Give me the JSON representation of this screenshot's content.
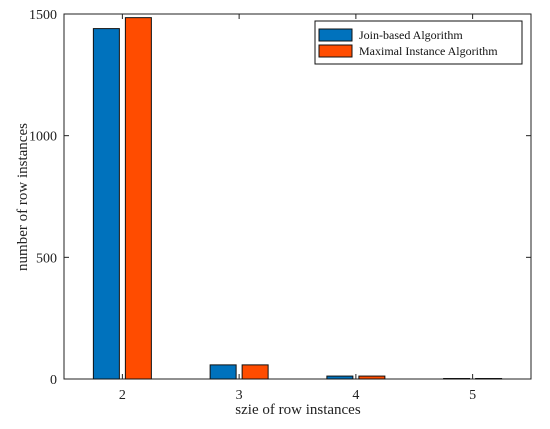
{
  "chart_data": {
    "type": "bar",
    "categories": [
      "2",
      "3",
      "4",
      "5"
    ],
    "series": [
      {
        "name": "Join-based Algorithm",
        "values": [
          1440,
          58,
          12,
          2
        ],
        "color": "#0072BD"
      },
      {
        "name": "Maximal Instance Algorithm",
        "values": [
          1485,
          58,
          12,
          2
        ],
        "color": "#FF4C00"
      }
    ],
    "xlabel": "szie of row instances",
    "ylabel": "number of row instances",
    "ylim": [
      0,
      1500
    ],
    "yticks": [
      0,
      500,
      1000,
      1500
    ],
    "grid": false,
    "legend_position": "top-right"
  }
}
